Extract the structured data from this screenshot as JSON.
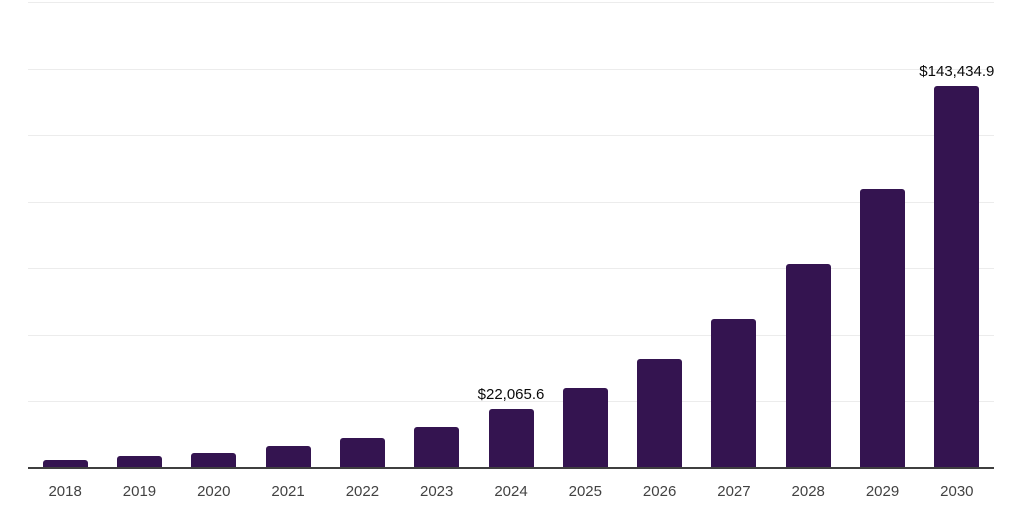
{
  "chart_data": {
    "type": "bar",
    "title": "",
    "xlabel": "",
    "ylabel": "",
    "categories": [
      "2018",
      "2019",
      "2020",
      "2021",
      "2022",
      "2023",
      "2024",
      "2025",
      "2026",
      "2027",
      "2028",
      "2029",
      "2030"
    ],
    "values": [
      3000,
      4400,
      5700,
      8100,
      11100,
      15300,
      22065.6,
      30100,
      41100,
      56100,
      76600,
      104700,
      143434.9
    ],
    "data_labels": [
      {
        "category": "2024",
        "text": "$22,065.6"
      },
      {
        "category": "2030",
        "text": "$143,434.9"
      }
    ],
    "ylim": [
      0,
      175000
    ],
    "gridline_step": 25000,
    "grid": "horizontal",
    "legend": "none",
    "y_axis_ticks_visible": false,
    "colors": {
      "bar": "#341450",
      "axis_line": "#3f3f3f",
      "gridline": "#ececec",
      "tick_label": "#424242",
      "data_label": "#0a0a0a",
      "background": "#ffffff"
    }
  }
}
